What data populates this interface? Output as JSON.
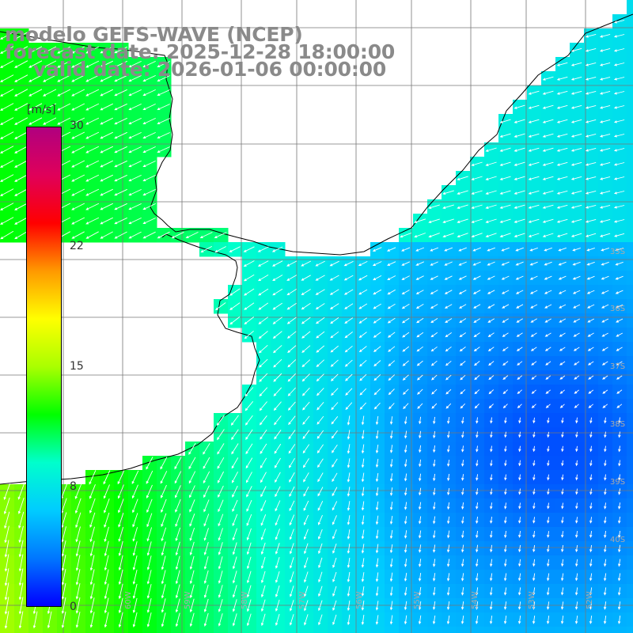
{
  "titles": {
    "model": "modelo GEFS-WAVE (NCEP)",
    "forecast": "forecast date: 2025-12-28 18:00:00",
    "valid": "valid date: 2026-01-06 00:00:00"
  },
  "colorbar": {
    "unit": "[m/s]",
    "min": 0,
    "max": 30,
    "tick_labels": [
      "30",
      "22",
      "15",
      "8",
      "0"
    ],
    "tick_values": [
      30,
      22,
      15,
      8,
      0
    ],
    "colors": [
      "#0000ff",
      "#0077ff",
      "#00ccff",
      "#00ffcc",
      "#00ff00",
      "#aaff00",
      "#ffff00",
      "#ff9900",
      "#ff0000",
      "#e0005a",
      "#b0007f"
    ]
  },
  "lat_labels": [
    "35S",
    "36S",
    "37S",
    "38S",
    "39S",
    "40S"
  ],
  "lon_labels": [
    "60W",
    "59W",
    "58W",
    "57W",
    "56W",
    "55W",
    "54W",
    "53W",
    "52W"
  ],
  "map": {
    "field": "wind speed",
    "unit": "m/s"
  }
}
